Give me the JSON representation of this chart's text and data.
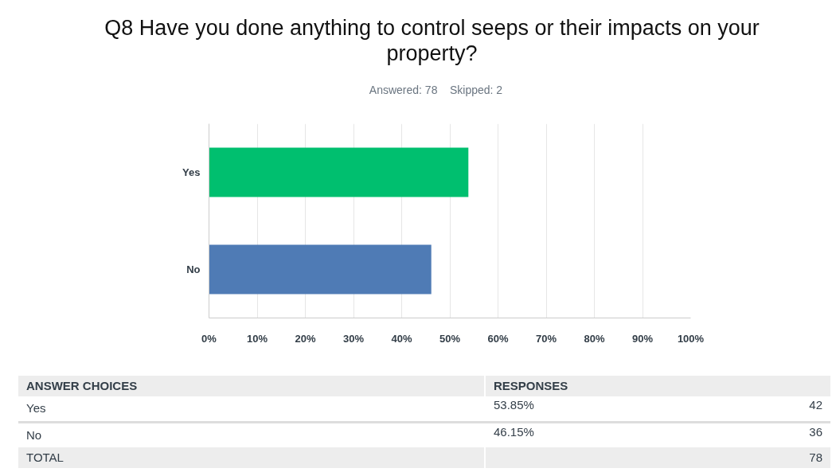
{
  "chart_data": {
    "type": "bar",
    "orientation": "horizontal",
    "title": "Q8 Have you done anything to control seeps or their impacts on your property?",
    "subtitle": "Answered: 78    Skipped: 2",
    "categories": [
      "Yes",
      "No"
    ],
    "values": [
      53.85,
      46.15
    ],
    "colors": [
      "#00bf6f",
      "#4f7bb5"
    ],
    "xlim": [
      0,
      100
    ],
    "xticks": [
      {
        "value": 0,
        "label": "0%"
      },
      {
        "value": 10,
        "label": "10%"
      },
      {
        "value": 20,
        "label": "20%"
      },
      {
        "value": 30,
        "label": "30%"
      },
      {
        "value": 40,
        "label": "40%"
      },
      {
        "value": 50,
        "label": "50%"
      },
      {
        "value": 60,
        "label": "60%"
      },
      {
        "value": 70,
        "label": "70%"
      },
      {
        "value": 80,
        "label": "80%"
      },
      {
        "value": 90,
        "label": "90%"
      },
      {
        "value": 100,
        "label": "100%"
      }
    ],
    "grid": "x",
    "annotations": [
      "ANSWER CHOICES",
      "RESPONSES",
      "42",
      "36",
      "TOTAL",
      "78",
      "53.85%",
      "46.15%"
    ]
  }
}
